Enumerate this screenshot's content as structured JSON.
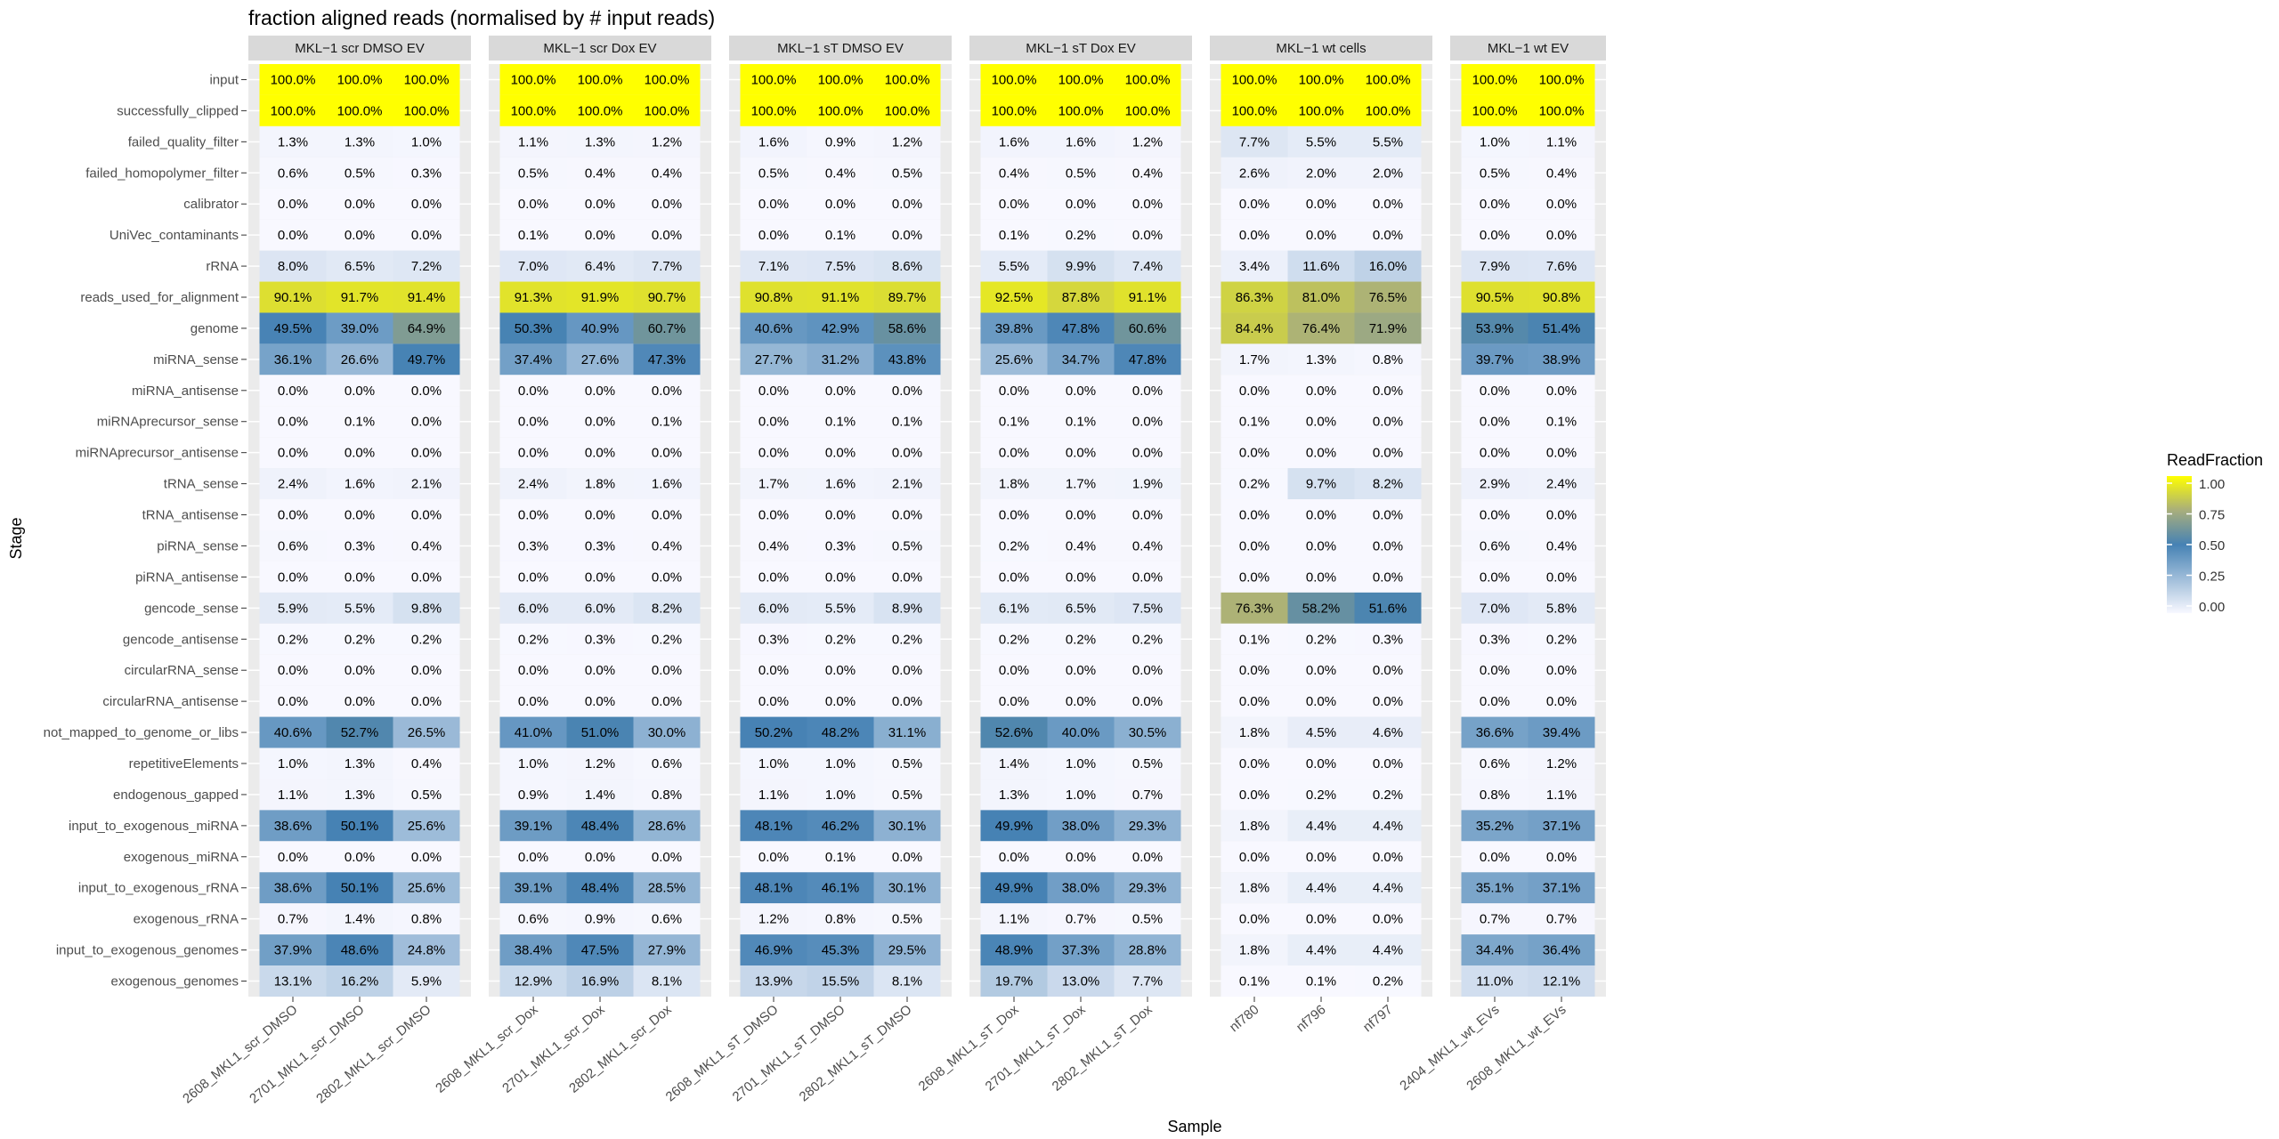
{
  "chart_data": {
    "type": "heatmap",
    "title": "fraction aligned reads (normalised by # input reads)",
    "xlabel": "Sample",
    "ylabel": "Stage",
    "legend": {
      "title": "ReadFraction",
      "ticks": [
        "1.00",
        "0.75",
        "0.50",
        "0.25",
        "0.00"
      ],
      "placement": "right",
      "colors": [
        "#FFFF00",
        "#A8AE7C",
        "#4682B4",
        "#F8F8FF"
      ]
    },
    "stages": [
      "input",
      "successfully_clipped",
      "failed_quality_filter",
      "failed_homopolymer_filter",
      "calibrator",
      "UniVec_contaminants",
      "rRNA",
      "reads_used_for_alignment",
      "genome",
      "miRNA_sense",
      "miRNA_antisense",
      "miRNAprecursor_sense",
      "miRNAprecursor_antisense",
      "tRNA_sense",
      "tRNA_antisense",
      "piRNA_sense",
      "piRNA_antisense",
      "gencode_sense",
      "gencode_antisense",
      "circularRNA_sense",
      "circularRNA_antisense",
      "not_mapped_to_genome_or_libs",
      "repetitiveElements",
      "endogenous_gapped",
      "input_to_exogenous_miRNA",
      "exogenous_miRNA",
      "input_to_exogenous_rRNA",
      "exogenous_rRNA",
      "input_to_exogenous_genomes",
      "exogenous_genomes"
    ],
    "facets": [
      {
        "label": "MKL−1 scr DMSO EV",
        "samples": [
          "2608_MKL1_scr_DMSO",
          "2701_MKL1_scr_DMSO",
          "2802_MKL1_scr_DMSO"
        ],
        "values": [
          [
            100.0,
            100.0,
            100.0
          ],
          [
            100.0,
            100.0,
            100.0
          ],
          [
            1.3,
            1.3,
            1.0
          ],
          [
            0.6,
            0.5,
            0.3
          ],
          [
            0.0,
            0.0,
            0.0
          ],
          [
            0.0,
            0.0,
            0.0
          ],
          [
            8.0,
            6.5,
            7.2
          ],
          [
            90.1,
            91.7,
            91.4
          ],
          [
            49.5,
            39.0,
            64.9
          ],
          [
            36.1,
            26.6,
            49.7
          ],
          [
            0.0,
            0.0,
            0.0
          ],
          [
            0.0,
            0.1,
            0.0
          ],
          [
            0.0,
            0.0,
            0.0
          ],
          [
            2.4,
            1.6,
            2.1
          ],
          [
            0.0,
            0.0,
            0.0
          ],
          [
            0.6,
            0.3,
            0.4
          ],
          [
            0.0,
            0.0,
            0.0
          ],
          [
            5.9,
            5.5,
            9.8
          ],
          [
            0.2,
            0.2,
            0.2
          ],
          [
            0.0,
            0.0,
            0.0
          ],
          [
            0.0,
            0.0,
            0.0
          ],
          [
            40.6,
            52.7,
            26.5
          ],
          [
            1.0,
            1.3,
            0.4
          ],
          [
            1.1,
            1.3,
            0.5
          ],
          [
            38.6,
            50.1,
            25.6
          ],
          [
            0.0,
            0.0,
            0.0
          ],
          [
            38.6,
            50.1,
            25.6
          ],
          [
            0.7,
            1.4,
            0.8
          ],
          [
            37.9,
            48.6,
            24.8
          ],
          [
            13.1,
            16.2,
            5.9
          ]
        ]
      },
      {
        "label": "MKL−1 scr Dox EV",
        "samples": [
          "2608_MKL1_scr_Dox",
          "2701_MKL1_scr_Dox",
          "2802_MKL1_scr_Dox"
        ],
        "values": [
          [
            100.0,
            100.0,
            100.0
          ],
          [
            100.0,
            100.0,
            100.0
          ],
          [
            1.1,
            1.3,
            1.2
          ],
          [
            0.5,
            0.4,
            0.4
          ],
          [
            0.0,
            0.0,
            0.0
          ],
          [
            0.1,
            0.0,
            0.0
          ],
          [
            7.0,
            6.4,
            7.7
          ],
          [
            91.3,
            91.9,
            90.7
          ],
          [
            50.3,
            40.9,
            60.7
          ],
          [
            37.4,
            27.6,
            47.3
          ],
          [
            0.0,
            0.0,
            0.0
          ],
          [
            0.0,
            0.0,
            0.1
          ],
          [
            0.0,
            0.0,
            0.0
          ],
          [
            2.4,
            1.8,
            1.6
          ],
          [
            0.0,
            0.0,
            0.0
          ],
          [
            0.3,
            0.3,
            0.4
          ],
          [
            0.0,
            0.0,
            0.0
          ],
          [
            6.0,
            6.0,
            8.2
          ],
          [
            0.2,
            0.3,
            0.2
          ],
          [
            0.0,
            0.0,
            0.0
          ],
          [
            0.0,
            0.0,
            0.0
          ],
          [
            41.0,
            51.0,
            30.0
          ],
          [
            1.0,
            1.2,
            0.6
          ],
          [
            0.9,
            1.4,
            0.8
          ],
          [
            39.1,
            48.4,
            28.6
          ],
          [
            0.0,
            0.0,
            0.0
          ],
          [
            39.1,
            48.4,
            28.5
          ],
          [
            0.6,
            0.9,
            0.6
          ],
          [
            38.4,
            47.5,
            27.9
          ],
          [
            12.9,
            16.9,
            8.1
          ]
        ]
      },
      {
        "label": "MKL−1 sT DMSO EV",
        "samples": [
          "2608_MKL1_sT_DMSO",
          "2701_MKL1_sT_DMSO",
          "2802_MKL1_sT_DMSO"
        ],
        "values": [
          [
            100.0,
            100.0,
            100.0
          ],
          [
            100.0,
            100.0,
            100.0
          ],
          [
            1.6,
            0.9,
            1.2
          ],
          [
            0.5,
            0.4,
            0.5
          ],
          [
            0.0,
            0.0,
            0.0
          ],
          [
            0.0,
            0.1,
            0.0
          ],
          [
            7.1,
            7.5,
            8.6
          ],
          [
            90.8,
            91.1,
            89.7
          ],
          [
            40.6,
            42.9,
            58.6
          ],
          [
            27.7,
            31.2,
            43.8
          ],
          [
            0.0,
            0.0,
            0.0
          ],
          [
            0.0,
            0.1,
            0.1
          ],
          [
            0.0,
            0.0,
            0.0
          ],
          [
            1.7,
            1.6,
            2.1
          ],
          [
            0.0,
            0.0,
            0.0
          ],
          [
            0.4,
            0.3,
            0.5
          ],
          [
            0.0,
            0.0,
            0.0
          ],
          [
            6.0,
            5.5,
            8.9
          ],
          [
            0.3,
            0.2,
            0.2
          ],
          [
            0.0,
            0.0,
            0.0
          ],
          [
            0.0,
            0.0,
            0.0
          ],
          [
            50.2,
            48.2,
            31.1
          ],
          [
            1.0,
            1.0,
            0.5
          ],
          [
            1.1,
            1.0,
            0.5
          ],
          [
            48.1,
            46.2,
            30.1
          ],
          [
            0.0,
            0.1,
            0.0
          ],
          [
            48.1,
            46.1,
            30.1
          ],
          [
            1.2,
            0.8,
            0.5
          ],
          [
            46.9,
            45.3,
            29.5
          ],
          [
            13.9,
            15.5,
            8.1
          ]
        ]
      },
      {
        "label": "MKL−1 sT Dox EV",
        "samples": [
          "2608_MKL1_sT_Dox",
          "2701_MKL1_sT_Dox",
          "2802_MKL1_sT_Dox"
        ],
        "values": [
          [
            100.0,
            100.0,
            100.0
          ],
          [
            100.0,
            100.0,
            100.0
          ],
          [
            1.6,
            1.6,
            1.2
          ],
          [
            0.4,
            0.5,
            0.4
          ],
          [
            0.0,
            0.0,
            0.0
          ],
          [
            0.1,
            0.2,
            0.0
          ],
          [
            5.5,
            9.9,
            7.4
          ],
          [
            92.5,
            87.8,
            91.1
          ],
          [
            39.8,
            47.8,
            60.6
          ],
          [
            25.6,
            34.7,
            47.8
          ],
          [
            0.0,
            0.0,
            0.0
          ],
          [
            0.1,
            0.1,
            0.0
          ],
          [
            0.0,
            0.0,
            0.0
          ],
          [
            1.8,
            1.7,
            1.9
          ],
          [
            0.0,
            0.0,
            0.0
          ],
          [
            0.2,
            0.4,
            0.4
          ],
          [
            0.0,
            0.0,
            0.0
          ],
          [
            6.1,
            6.5,
            7.5
          ],
          [
            0.2,
            0.2,
            0.2
          ],
          [
            0.0,
            0.0,
            0.0
          ],
          [
            0.0,
            0.0,
            0.0
          ],
          [
            52.6,
            40.0,
            30.5
          ],
          [
            1.4,
            1.0,
            0.5
          ],
          [
            1.3,
            1.0,
            0.7
          ],
          [
            49.9,
            38.0,
            29.3
          ],
          [
            0.0,
            0.0,
            0.0
          ],
          [
            49.9,
            38.0,
            29.3
          ],
          [
            1.1,
            0.7,
            0.5
          ],
          [
            48.9,
            37.3,
            28.8
          ],
          [
            19.7,
            13.0,
            7.7
          ]
        ]
      },
      {
        "label": "MKL−1 wt cells",
        "samples": [
          "nf780",
          "nf796",
          "nf797"
        ],
        "values": [
          [
            100.0,
            100.0,
            100.0
          ],
          [
            100.0,
            100.0,
            100.0
          ],
          [
            7.7,
            5.5,
            5.5
          ],
          [
            2.6,
            2.0,
            2.0
          ],
          [
            0.0,
            0.0,
            0.0
          ],
          [
            0.0,
            0.0,
            0.0
          ],
          [
            3.4,
            11.6,
            16.0
          ],
          [
            86.3,
            81.0,
            76.5
          ],
          [
            84.4,
            76.4,
            71.9
          ],
          [
            1.7,
            1.3,
            0.8
          ],
          [
            0.0,
            0.0,
            0.0
          ],
          [
            0.1,
            0.0,
            0.0
          ],
          [
            0.0,
            0.0,
            0.0
          ],
          [
            0.2,
            9.7,
            8.2
          ],
          [
            0.0,
            0.0,
            0.0
          ],
          [
            0.0,
            0.0,
            0.0
          ],
          [
            0.0,
            0.0,
            0.0
          ],
          [
            76.3,
            58.2,
            51.6
          ],
          [
            0.1,
            0.2,
            0.3
          ],
          [
            0.0,
            0.0,
            0.0
          ],
          [
            0.0,
            0.0,
            0.0
          ],
          [
            1.8,
            4.5,
            4.6
          ],
          [
            0.0,
            0.0,
            0.0
          ],
          [
            0.0,
            0.2,
            0.2
          ],
          [
            1.8,
            4.4,
            4.4
          ],
          [
            0.0,
            0.0,
            0.0
          ],
          [
            1.8,
            4.4,
            4.4
          ],
          [
            0.0,
            0.0,
            0.0
          ],
          [
            1.8,
            4.4,
            4.4
          ],
          [
            0.1,
            0.1,
            0.2
          ]
        ]
      },
      {
        "label": "MKL−1 wt EV",
        "samples": [
          "2404_MKL1_wt_EVs",
          "2608_MKL1_wt_EVs"
        ],
        "values": [
          [
            100.0,
            100.0
          ],
          [
            100.0,
            100.0
          ],
          [
            1.0,
            1.1
          ],
          [
            0.5,
            0.4
          ],
          [
            0.0,
            0.0
          ],
          [
            0.0,
            0.0
          ],
          [
            7.9,
            7.6
          ],
          [
            90.5,
            90.8
          ],
          [
            53.9,
            51.4
          ],
          [
            39.7,
            38.9
          ],
          [
            0.0,
            0.0
          ],
          [
            0.0,
            0.1
          ],
          [
            0.0,
            0.0
          ],
          [
            2.9,
            2.4
          ],
          [
            0.0,
            0.0
          ],
          [
            0.6,
            0.4
          ],
          [
            0.0,
            0.0
          ],
          [
            7.0,
            5.8
          ],
          [
            0.3,
            0.2
          ],
          [
            0.0,
            0.0
          ],
          [
            0.0,
            0.0
          ],
          [
            36.6,
            39.4
          ],
          [
            0.6,
            1.2
          ],
          [
            0.8,
            1.1
          ],
          [
            35.2,
            37.1
          ],
          [
            0.0,
            0.0
          ],
          [
            35.1,
            37.1
          ],
          [
            0.7,
            0.7
          ],
          [
            34.4,
            36.4
          ],
          [
            11.0,
            12.1
          ]
        ]
      }
    ]
  }
}
